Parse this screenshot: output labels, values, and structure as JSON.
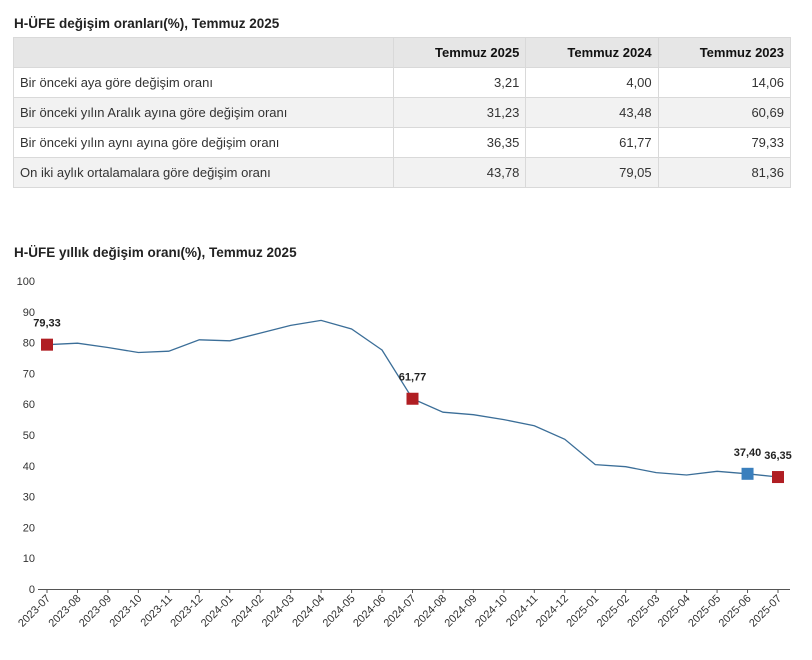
{
  "table": {
    "title": "H-ÜFE değişim oranları(%), Temmuz 2025",
    "headers": [
      "",
      "Temmuz 2025",
      "Temmuz 2024",
      "Temmuz 2023"
    ],
    "rows": [
      {
        "label": "Bir önceki aya göre değişim oranı",
        "values": [
          "3,21",
          "4,00",
          "14,06"
        ]
      },
      {
        "label": "Bir önceki yılın Aralık ayına göre değişim oranı",
        "values": [
          "31,23",
          "43,48",
          "60,69"
        ]
      },
      {
        "label": "Bir önceki yılın aynı ayına göre değişim oranı",
        "values": [
          "36,35",
          "61,77",
          "79,33"
        ]
      },
      {
        "label": "On iki aylık ortalamalara göre değişim oranı",
        "values": [
          "43,78",
          "79,05",
          "81,36"
        ]
      }
    ]
  },
  "chart_data": {
    "type": "line",
    "title": "H-ÜFE yıllık değişim oranı(%), Temmuz 2025",
    "categories": [
      "2023-07",
      "2023-08",
      "2023-09",
      "2023-10",
      "2023-11",
      "2023-12",
      "2024-01",
      "2024-02",
      "2024-03",
      "2024-04",
      "2024-05",
      "2024-06",
      "2024-07",
      "2024-08",
      "2024-09",
      "2024-10",
      "2024-11",
      "2024-12",
      "2025-01",
      "2025-02",
      "2025-03",
      "2025-04",
      "2025-05",
      "2025-06",
      "2025-07"
    ],
    "values": [
      79.33,
      79.8,
      78.4,
      76.8,
      77.2,
      80.9,
      80.6,
      83.1,
      85.6,
      87.2,
      84.4,
      77.6,
      61.77,
      57.4,
      56.6,
      55.0,
      53.0,
      48.6,
      40.4,
      39.7,
      37.8,
      37.0,
      38.2,
      37.4,
      36.35
    ],
    "ylim": [
      0,
      100
    ],
    "yticks": [
      0,
      10,
      20,
      30,
      40,
      50,
      60,
      70,
      80,
      90,
      100
    ],
    "grid": false,
    "line_color": "#3b6e98",
    "markers": [
      {
        "category": "2023-07",
        "value": 79.33,
        "label": "79,33",
        "color": "#b01e23"
      },
      {
        "category": "2024-07",
        "value": 61.77,
        "label": "61,77",
        "color": "#b01e23"
      },
      {
        "category": "2025-06",
        "value": 37.4,
        "label": "37,40",
        "color": "#3a7fbd"
      },
      {
        "category": "2025-07",
        "value": 36.35,
        "label": "36,35",
        "color": "#b01e23"
      }
    ]
  }
}
